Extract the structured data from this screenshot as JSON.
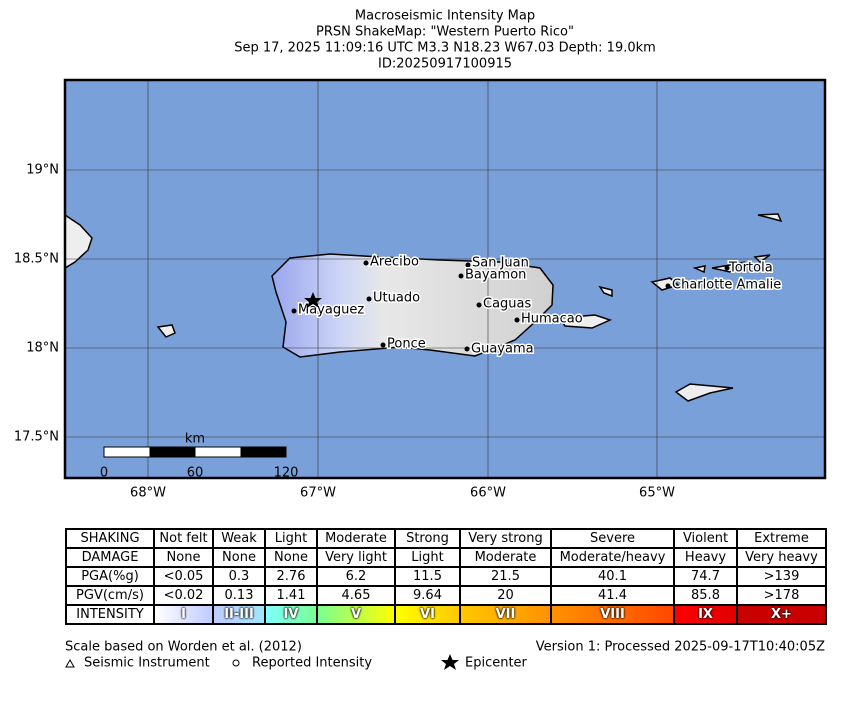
{
  "title": [
    "Macroseismic Intensity Map",
    "PRSN ShakeMap: \"Western Puerto Rico\"",
    "Sep 17, 2025 11:09:16 UTC M3.3 N18.23 W67.03 Depth: 19.0km",
    "ID:20250917100915"
  ],
  "map": {
    "lat_labels": [
      "19°N",
      "18.5°N",
      "18°N",
      "17.5°N"
    ],
    "lon_labels": [
      "68°W",
      "67°W",
      "66°W",
      "65°W"
    ],
    "scale_bar": {
      "unit": "km",
      "labels": [
        "0",
        "60",
        "120"
      ]
    },
    "cities": [
      "Arecibo",
      "San Juan",
      "Bayamon",
      "Utuado",
      "Mayaguez",
      "Caguas",
      "Humacao",
      "Ponce",
      "Guayama",
      "Tortola",
      "Charlotte Amalie"
    ]
  },
  "table": {
    "rows": [
      [
        "SHAKING",
        "Not felt",
        "Weak",
        "Light",
        "Moderate",
        "Strong",
        "Very strong",
        "Severe",
        "Violent",
        "Extreme"
      ],
      [
        "DAMAGE",
        "None",
        "None",
        "None",
        "Very light",
        "Light",
        "Moderate",
        "Moderate/heavy",
        "Heavy",
        "Very heavy"
      ],
      [
        "PGA(%g)",
        "<0.05",
        "0.3",
        "2.76",
        "6.2",
        "11.5",
        "21.5",
        "40.1",
        "74.7",
        ">139"
      ],
      [
        "PGV(cm/s)",
        "<0.02",
        "0.13",
        "1.41",
        "4.65",
        "9.64",
        "20",
        "41.4",
        "85.8",
        ">178"
      ],
      [
        "INTENSITY",
        "I",
        "II-III",
        "IV",
        "V",
        "VI",
        "VII",
        "VIII",
        "IX",
        "X+"
      ]
    ]
  },
  "footer": {
    "scale_note": "Scale based on Worden et al. (2012)",
    "version": "Version 1: Processed 2025-09-17T10:40:05Z",
    "legend": [
      "Seismic Instrument",
      "Reported Intensity",
      "Epicenter"
    ]
  }
}
